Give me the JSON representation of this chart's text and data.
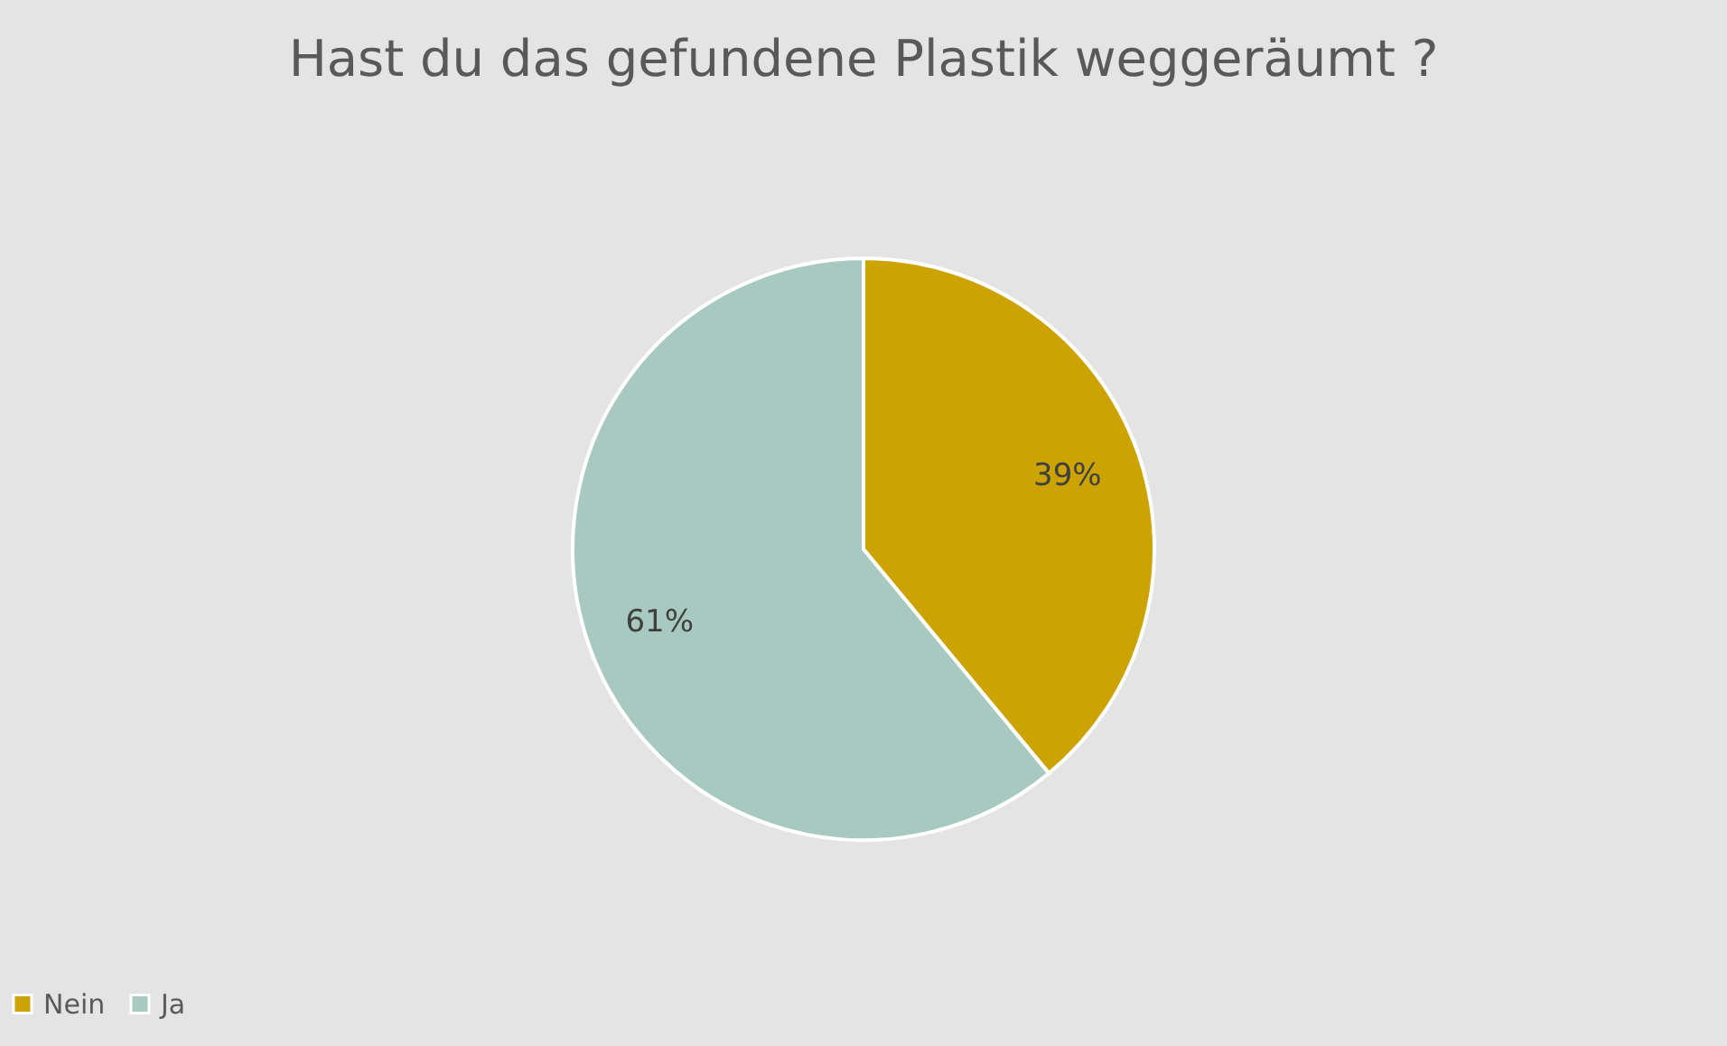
{
  "chart_data": {
    "type": "pie",
    "title": "Hast du das gefundene Plastik weggeräumt ?",
    "categories": [
      "Nein",
      "Ja"
    ],
    "values": [
      39,
      61
    ],
    "colors": [
      "#cca300",
      "#a7c9c0"
    ],
    "value_labels": [
      "39%",
      "61%"
    ],
    "legend": "bottom"
  }
}
